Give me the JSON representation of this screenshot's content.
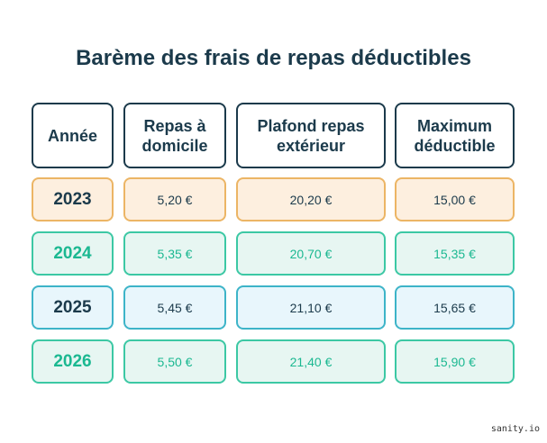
{
  "title": "Barème des frais de repas déductibles",
  "table": {
    "headers": [
      "Année",
      "Repas à\ndomicile",
      "Plafond repas\nextérieur",
      "Maximum\ndéductible"
    ],
    "rows": [
      {
        "year": "2023",
        "home": "5,20 €",
        "outside": "20,20 €",
        "max": "15,00 €",
        "style": "orange"
      },
      {
        "year": "2024",
        "home": "5,35 €",
        "outside": "20,70 €",
        "max": "15,35 €",
        "style": "green"
      },
      {
        "year": "2025",
        "home": "5,45 €",
        "outside": "21,10 €",
        "max": "15,65 €",
        "style": "blue"
      },
      {
        "year": "2026",
        "home": "5,50 €",
        "outside": "21,40 €",
        "max": "15,90 €",
        "style": "green"
      }
    ]
  },
  "colors": {
    "header_border": "#1b3a4b",
    "orange_border": "#ecb565",
    "orange_fill": "#fdefdf",
    "green_border": "#3cc8a4",
    "green_fill": "#e7f6f2",
    "green_text": "#1bb891",
    "blue_border": "#3db4c8",
    "blue_fill": "#e8f6fc"
  },
  "watermark": "sanity.io"
}
